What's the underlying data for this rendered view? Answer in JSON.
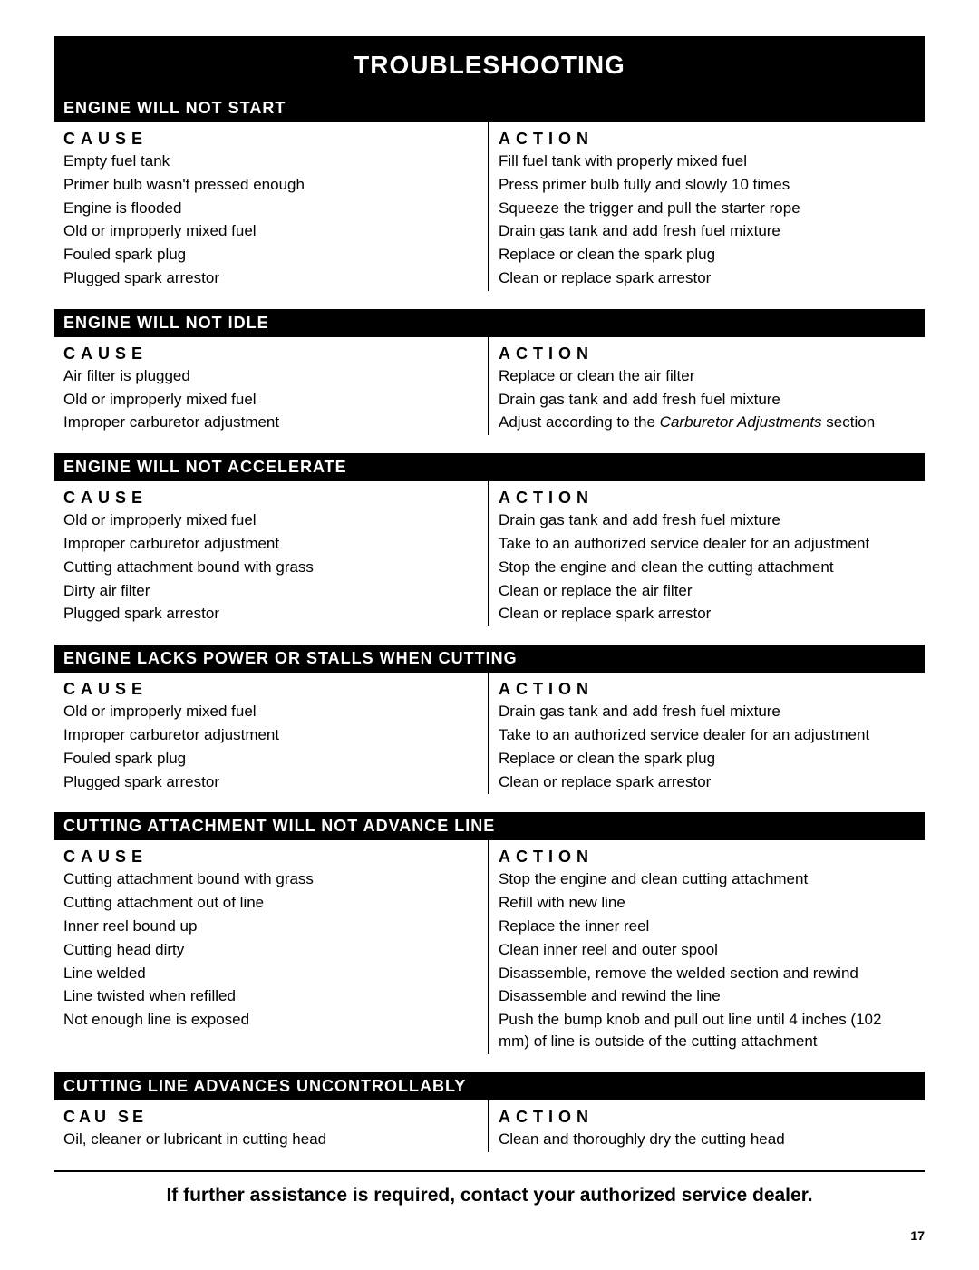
{
  "page_title": "TROUBLESHOOTING",
  "col_cause_label": "CAUSE",
  "col_action_label": "ACTION",
  "col_cause_label2": "CAU SE",
  "sections": [
    {
      "header": "ENGINE WILL NOT START",
      "rows": [
        {
          "cause": "Empty fuel tank",
          "action": "Fill fuel tank with properly mixed fuel"
        },
        {
          "cause": "Primer bulb wasn't pressed enough",
          "action": "Press primer bulb fully and slowly 10 times"
        },
        {
          "cause": "Engine is flooded",
          "action": "Squeeze the trigger and pull the starter rope"
        },
        {
          "cause": "Old or improperly mixed fuel",
          "action": "Drain gas tank and add fresh fuel mixture"
        },
        {
          "cause": "Fouled spark plug",
          "action": "Replace or clean the spark plug"
        },
        {
          "cause": "Plugged spark arrestor",
          "action": "Clean or replace spark arrestor"
        }
      ]
    },
    {
      "header": "ENGINE WILL NOT IDLE",
      "rows": [
        {
          "cause": "Air filter is plugged",
          "action": "Replace or clean the air filter"
        },
        {
          "cause": "Old or improperly mixed fuel",
          "action": "Drain gas tank and add fresh fuel mixture"
        },
        {
          "cause": "Improper carburetor adjustment",
          "action_html": "Adjust according to the <span class='italic'>Carburetor Adjustments</span> section"
        }
      ]
    },
    {
      "header": "ENGINE WILL NOT ACCELERATE",
      "rows": [
        {
          "cause": "Old or improperly mixed fuel",
          "action": "Drain gas tank and add fresh fuel mixture"
        },
        {
          "cause": "Improper carburetor adjustment",
          "action": "Take to an authorized service dealer for an adjustment"
        },
        {
          "cause": "Cutting attachment bound with grass",
          "action": "Stop the engine and clean the cutting attachment"
        },
        {
          "cause": "Dirty air filter",
          "action": "Clean or replace the air filter"
        },
        {
          "cause": "Plugged spark arrestor",
          "action": "Clean or replace spark arrestor"
        }
      ]
    },
    {
      "header": "ENGINE LACKS POWER OR STALLS WHEN CUTTING",
      "rows": [
        {
          "cause": "Old or improperly mixed fuel",
          "action": "Drain gas tank and add fresh fuel mixture"
        },
        {
          "cause": "Improper carburetor adjustment",
          "action": "Take to an authorized service dealer for an adjustment"
        },
        {
          "cause": "Fouled spark plug",
          "action": "Replace or clean the spark plug"
        },
        {
          "cause": "Plugged spark arrestor",
          "action": "Clean or replace spark arrestor"
        }
      ]
    },
    {
      "header": "CUTTING ATTACHMENT WILL NOT ADVANCE LINE",
      "rows": [
        {
          "cause": "Cutting attachment bound with grass",
          "action": "Stop the engine and clean cutting attachment"
        },
        {
          "cause": "Cutting attachment out of line",
          "action": "Refill with new line"
        },
        {
          "cause": "Inner reel bound up",
          "action": "Replace the inner reel"
        },
        {
          "cause": "Cutting head dirty",
          "action": "Clean inner reel and outer spool"
        },
        {
          "cause": "Line welded",
          "action": "Disassemble, remove the welded section and rewind"
        },
        {
          "cause": "Line twisted when refilled",
          "action": "Disassemble and rewind the line"
        },
        {
          "cause": "Not enough line is exposed",
          "action": "Push the bump knob and pull out line until 4 inches (102 mm) of line is outside of the cutting attachment"
        }
      ]
    },
    {
      "header": "CUTTING LINE ADVANCES UNCONTROLLABLY",
      "cause_label_variant": true,
      "rows": [
        {
          "cause": "Oil, cleaner or lubricant in cutting head",
          "action": "Clean and thoroughly dry the cutting head"
        }
      ]
    }
  ],
  "footer_message": "If further assistance is required, contact your authorized service dealer.",
  "page_number": "17"
}
